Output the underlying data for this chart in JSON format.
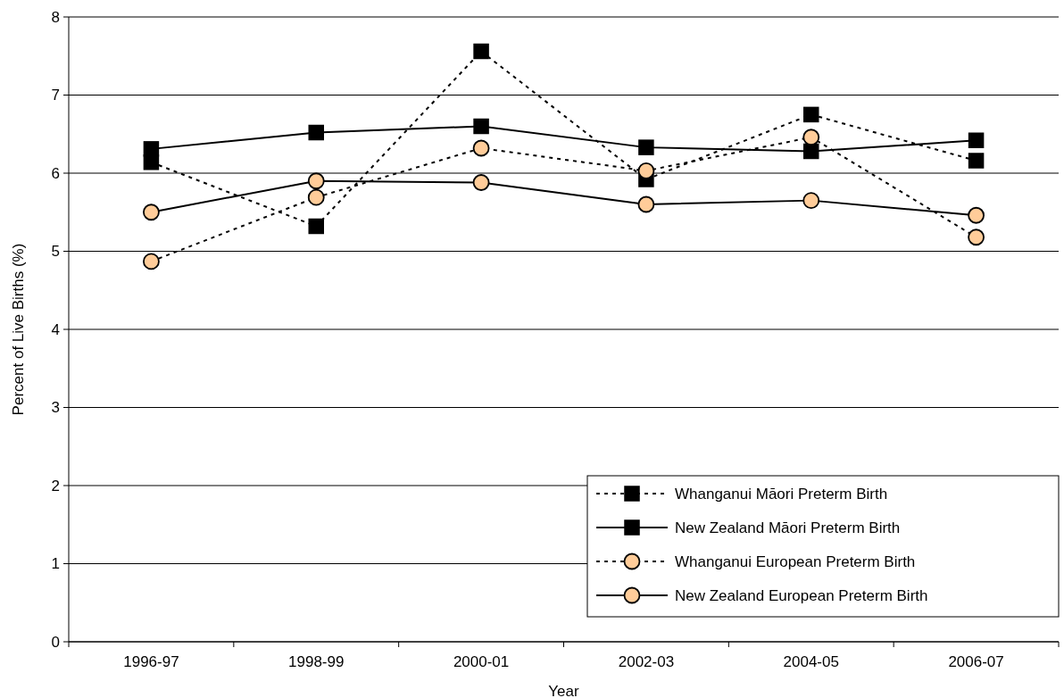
{
  "chart_data": {
    "type": "line",
    "xlabel": "Year",
    "ylabel": "Percent of Live Births (%)",
    "categories": [
      "1996-97",
      "1998-99",
      "2000-01",
      "2002-03",
      "2004-05",
      "2006-07"
    ],
    "ylim": [
      0,
      8
    ],
    "yticks": [
      0,
      1,
      2,
      3,
      4,
      5,
      6,
      7,
      8
    ],
    "grid": "y",
    "legend": "bottom right",
    "series": [
      {
        "name": "Whanganui Māori Preterm Birth",
        "color": "#000000",
        "marker": "square",
        "line_style": "dotted",
        "values": [
          6.14,
          5.32,
          7.56,
          5.92,
          6.75,
          6.16
        ]
      },
      {
        "name": "New Zealand Māori Preterm Birth",
        "color": "#000000",
        "marker": "square",
        "line_style": "solid",
        "values": [
          6.31,
          6.52,
          6.6,
          6.33,
          6.28,
          6.42
        ]
      },
      {
        "name": "Whanganui European Preterm Birth",
        "color": "#ffcc99",
        "marker": "circle",
        "line_style": "dotted",
        "values": [
          4.87,
          5.69,
          6.32,
          6.03,
          6.46,
          5.18
        ]
      },
      {
        "name": "New Zealand European Preterm Birth",
        "color": "#ffcc99",
        "marker": "circle",
        "line_style": "solid",
        "values": [
          5.5,
          5.9,
          5.88,
          5.6,
          5.65,
          5.46
        ]
      }
    ]
  }
}
